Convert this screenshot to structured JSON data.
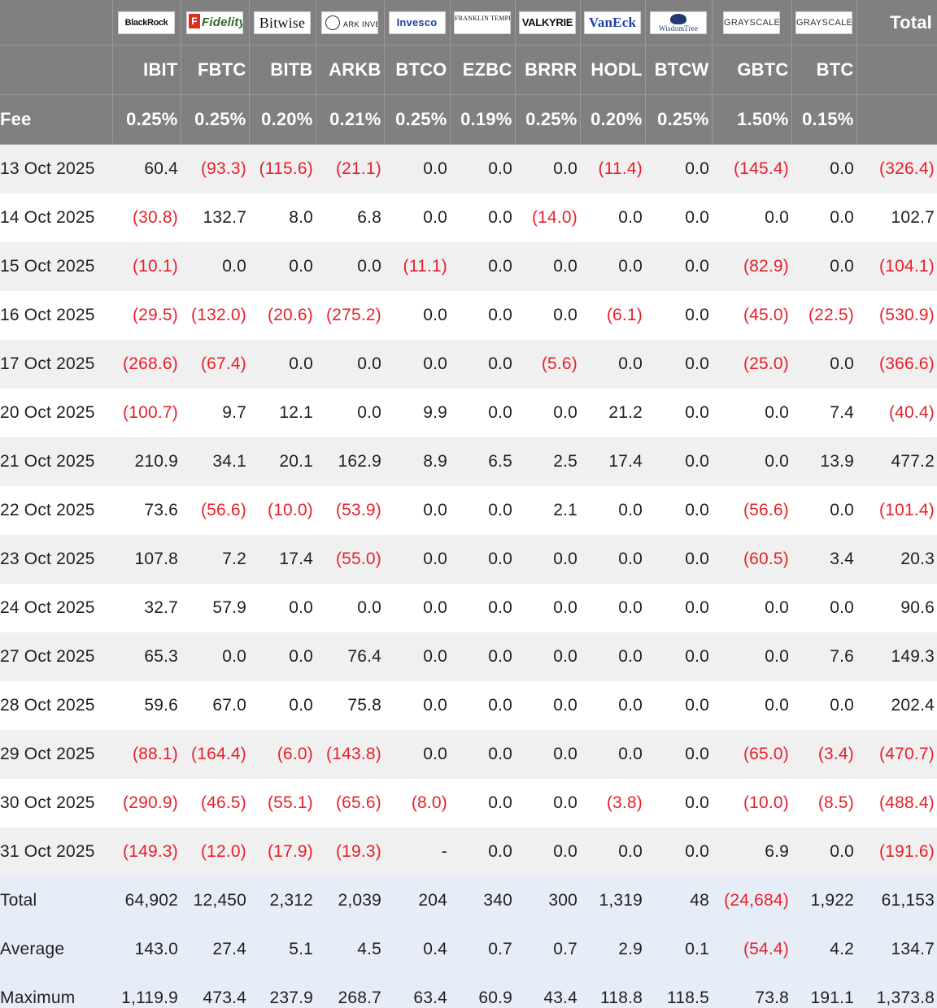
{
  "header": {
    "total_label": "Total",
    "fee_label": "Fee",
    "columns": [
      {
        "brand": "BlackRock",
        "ticker": "IBIT",
        "fee": "0.25%"
      },
      {
        "brand": "Fidelity",
        "ticker": "FBTC",
        "fee": "0.25%"
      },
      {
        "brand": "Bitwise",
        "ticker": "BITB",
        "fee": "0.20%"
      },
      {
        "brand": "ARK INVEST",
        "ticker": "ARKB",
        "fee": "0.21%"
      },
      {
        "brand": "Invesco",
        "ticker": "BTCO",
        "fee": "0.25%"
      },
      {
        "brand": "FRANKLIN TEMPLETON",
        "ticker": "EZBC",
        "fee": "0.19%"
      },
      {
        "brand": "VALKYRIE",
        "ticker": "BRRR",
        "fee": "0.25%"
      },
      {
        "brand": "VanEck",
        "ticker": "HODL",
        "fee": "0.20%"
      },
      {
        "brand": "WisdomTree",
        "ticker": "BTCW",
        "fee": "0.25%"
      },
      {
        "brand": "GRAYSCALE",
        "ticker": "GBTC",
        "fee": "1.50%"
      },
      {
        "brand": "GRAYSCALE",
        "ticker": "BTC",
        "fee": "0.15%"
      }
    ]
  },
  "rows": [
    {
      "date": "13 Oct 2025",
      "values": [
        "60.4",
        "(93.3)",
        "(115.6)",
        "(21.1)",
        "0.0",
        "0.0",
        "0.0",
        "(11.4)",
        "0.0",
        "(145.4)",
        "0.0"
      ],
      "total": "(326.4)"
    },
    {
      "date": "14 Oct 2025",
      "values": [
        "(30.8)",
        "132.7",
        "8.0",
        "6.8",
        "0.0",
        "0.0",
        "(14.0)",
        "0.0",
        "0.0",
        "0.0",
        "0.0"
      ],
      "total": "102.7"
    },
    {
      "date": "15 Oct 2025",
      "values": [
        "(10.1)",
        "0.0",
        "0.0",
        "0.0",
        "(11.1)",
        "0.0",
        "0.0",
        "0.0",
        "0.0",
        "(82.9)",
        "0.0"
      ],
      "total": "(104.1)"
    },
    {
      "date": "16 Oct 2025",
      "values": [
        "(29.5)",
        "(132.0)",
        "(20.6)",
        "(275.2)",
        "0.0",
        "0.0",
        "0.0",
        "(6.1)",
        "0.0",
        "(45.0)",
        "(22.5)"
      ],
      "total": "(530.9)"
    },
    {
      "date": "17 Oct 2025",
      "values": [
        "(268.6)",
        "(67.4)",
        "0.0",
        "0.0",
        "0.0",
        "0.0",
        "(5.6)",
        "0.0",
        "0.0",
        "(25.0)",
        "0.0"
      ],
      "total": "(366.6)"
    },
    {
      "date": "20 Oct 2025",
      "values": [
        "(100.7)",
        "9.7",
        "12.1",
        "0.0",
        "9.9",
        "0.0",
        "0.0",
        "21.2",
        "0.0",
        "0.0",
        "7.4"
      ],
      "total": "(40.4)"
    },
    {
      "date": "21 Oct 2025",
      "values": [
        "210.9",
        "34.1",
        "20.1",
        "162.9",
        "8.9",
        "6.5",
        "2.5",
        "17.4",
        "0.0",
        "0.0",
        "13.9"
      ],
      "total": "477.2"
    },
    {
      "date": "22 Oct 2025",
      "values": [
        "73.6",
        "(56.6)",
        "(10.0)",
        "(53.9)",
        "0.0",
        "0.0",
        "2.1",
        "0.0",
        "0.0",
        "(56.6)",
        "0.0"
      ],
      "total": "(101.4)"
    },
    {
      "date": "23 Oct 2025",
      "values": [
        "107.8",
        "7.2",
        "17.4",
        "(55.0)",
        "0.0",
        "0.0",
        "0.0",
        "0.0",
        "0.0",
        "(60.5)",
        "3.4"
      ],
      "total": "20.3"
    },
    {
      "date": "24 Oct 2025",
      "values": [
        "32.7",
        "57.9",
        "0.0",
        "0.0",
        "0.0",
        "0.0",
        "0.0",
        "0.0",
        "0.0",
        "0.0",
        "0.0"
      ],
      "total": "90.6"
    },
    {
      "date": "27 Oct 2025",
      "values": [
        "65.3",
        "0.0",
        "0.0",
        "76.4",
        "0.0",
        "0.0",
        "0.0",
        "0.0",
        "0.0",
        "0.0",
        "7.6"
      ],
      "total": "149.3"
    },
    {
      "date": "28 Oct 2025",
      "values": [
        "59.6",
        "67.0",
        "0.0",
        "75.8",
        "0.0",
        "0.0",
        "0.0",
        "0.0",
        "0.0",
        "0.0",
        "0.0"
      ],
      "total": "202.4"
    },
    {
      "date": "29 Oct 2025",
      "values": [
        "(88.1)",
        "(164.4)",
        "(6.0)",
        "(143.8)",
        "0.0",
        "0.0",
        "0.0",
        "0.0",
        "0.0",
        "(65.0)",
        "(3.4)"
      ],
      "total": "(470.7)"
    },
    {
      "date": "30 Oct 2025",
      "values": [
        "(290.9)",
        "(46.5)",
        "(55.1)",
        "(65.6)",
        "(8.0)",
        "0.0",
        "0.0",
        "(3.8)",
        "0.0",
        "(10.0)",
        "(8.5)"
      ],
      "total": "(488.4)"
    },
    {
      "date": "31 Oct 2025",
      "values": [
        "(149.3)",
        "(12.0)",
        "(17.9)",
        "(19.3)",
        "-",
        "0.0",
        "0.0",
        "0.0",
        "0.0",
        "6.9",
        "0.0"
      ],
      "total": "(191.6)"
    }
  ],
  "summary": [
    {
      "label": "Total",
      "values": [
        "64,902",
        "12,450",
        "2,312",
        "2,039",
        "204",
        "340",
        "300",
        "1,319",
        "48",
        "(24,684)",
        "1,922"
      ],
      "total": "61,153"
    },
    {
      "label": "Average",
      "values": [
        "143.0",
        "27.4",
        "5.1",
        "4.5",
        "0.4",
        "0.7",
        "0.7",
        "2.9",
        "0.1",
        "(54.4)",
        "4.2"
      ],
      "total": "134.7"
    },
    {
      "label": "Maximum",
      "values": [
        "1,119.9",
        "473.4",
        "237.9",
        "268.7",
        "63.4",
        "60.9",
        "43.4",
        "118.8",
        "118.5",
        "73.8",
        "191.1"
      ],
      "total": "1,373.8"
    }
  ]
}
